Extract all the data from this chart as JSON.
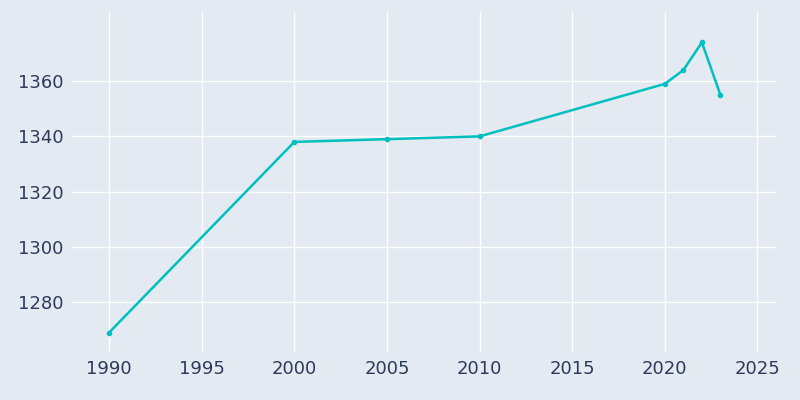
{
  "x": [
    1990,
    2000,
    2005,
    2010,
    2020,
    2021,
    2022,
    2023
  ],
  "y": [
    1269,
    1338,
    1339,
    1340,
    1359,
    1364,
    1374,
    1355
  ],
  "line_color": "#00BFBF",
  "marker": "o",
  "marker_size": 3.0,
  "line_width": 1.8,
  "background_color": "#E4EAF2",
  "axes_bg_color": "#E4EAF2",
  "figure_bg_color": "#E4EAF2",
  "grid_color": "#FFFFFF",
  "xlim": [
    1988,
    2026
  ],
  "ylim": [
    1262,
    1385
  ],
  "xticks": [
    1990,
    1995,
    2000,
    2005,
    2010,
    2015,
    2020,
    2025
  ],
  "yticks": [
    1280,
    1300,
    1320,
    1340,
    1360
  ],
  "tick_label_color": "#2D3A5A",
  "tick_label_size": 13
}
